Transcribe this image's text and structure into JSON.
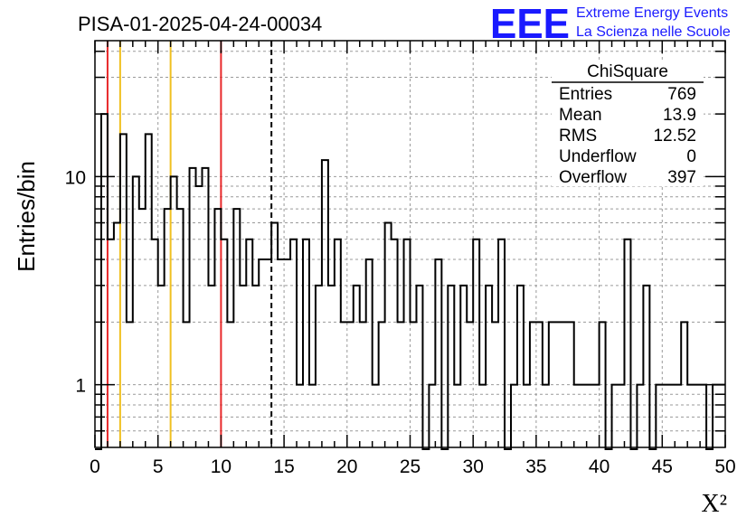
{
  "header": {
    "title": "PISA-01-2025-04-24-00034",
    "logo": "EEE",
    "logo_line1": "Extreme Energy Events",
    "logo_line2": "La Scienza nelle Scuole"
  },
  "stats": {
    "name": "ChiSquare",
    "rows": [
      {
        "label": "Entries",
        "value": "769"
      },
      {
        "label": "Mean",
        "value": "13.9"
      },
      {
        "label": "RMS",
        "value": "12.52"
      },
      {
        "label": "Underflow",
        "value": "0"
      },
      {
        "label": "Overflow",
        "value": "397"
      }
    ]
  },
  "colors": {
    "red_line": "#e8282a",
    "yellow_line": "#f0c020",
    "histogram": "#000000",
    "grid": "#9a9a9a",
    "logo": "#1a1aff"
  },
  "chart_data": {
    "type": "bar",
    "style": "step-histogram",
    "title": "PISA-01-2025-04-24-00034",
    "xlabel": "X²",
    "ylabel": "Entries/bin",
    "xlim": [
      0,
      50
    ],
    "ylim": [
      0.5,
      45
    ],
    "yscale": "log",
    "grid": true,
    "bin_width": 0.5,
    "x_ticks": [
      "0",
      "5",
      "10",
      "15",
      "20",
      "25",
      "30",
      "35",
      "40",
      "45",
      "50"
    ],
    "y_ticks": [
      "1",
      "10"
    ],
    "values": [
      0,
      20,
      5,
      6,
      16,
      2,
      10,
      7,
      16,
      5,
      3,
      7,
      10,
      7,
      2,
      11,
      9,
      11,
      3,
      7,
      5,
      2,
      7,
      3,
      5,
      3,
      4,
      4,
      6,
      4,
      4,
      5,
      1,
      5,
      1,
      3,
      12,
      3,
      5,
      2,
      2,
      3,
      2,
      4,
      1,
      2,
      6,
      5,
      2,
      5,
      2,
      3,
      0,
      1,
      4,
      0,
      3,
      1,
      3,
      2,
      5,
      1,
      3,
      2,
      5,
      0,
      1,
      3,
      1,
      2,
      2,
      1,
      2,
      2,
      2,
      2,
      1,
      1,
      1,
      1,
      2,
      0,
      1,
      1,
      5,
      0,
      1,
      3,
      0,
      1,
      1,
      1,
      1,
      2,
      1,
      1,
      1,
      0,
      1,
      1
    ],
    "vlines": [
      {
        "x": 1,
        "color": "red",
        "style": "solid"
      },
      {
        "x": 2,
        "color": "yellow",
        "style": "solid"
      },
      {
        "x": 6,
        "color": "yellow",
        "style": "solid"
      },
      {
        "x": 10,
        "color": "red",
        "style": "solid"
      },
      {
        "x": 14,
        "color": "black",
        "style": "dashed"
      }
    ]
  }
}
